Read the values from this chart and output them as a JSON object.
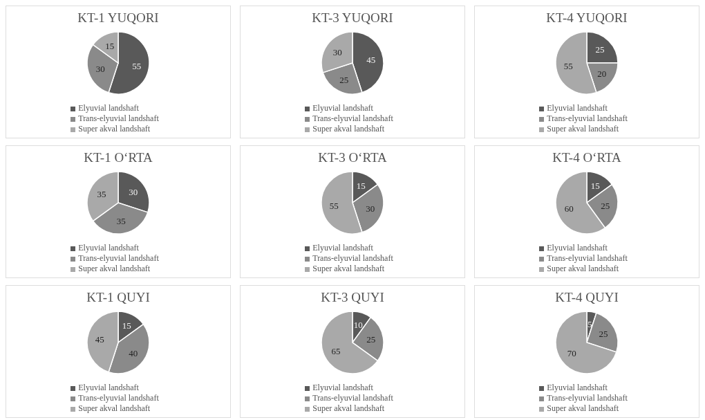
{
  "chart_data": [
    {
      "type": "pie",
      "title": "KT-1 YUQORI",
      "categories": [
        "Elyuvial landshaft",
        "Trans-elyuvial landshaft",
        "Super akval landshaft"
      ],
      "values": [
        55,
        30,
        15
      ],
      "colors": [
        "#595959",
        "#8a8a8a",
        "#a9a9a9"
      ],
      "data_labels": true,
      "legend": "bottom"
    },
    {
      "type": "pie",
      "title": "KT-3 YUQORI",
      "categories": [
        "Elyuvial landshaft",
        "Trans-elyuvial landshaft",
        "Super akval landshaft"
      ],
      "values": [
        45,
        25,
        30
      ],
      "colors": [
        "#595959",
        "#8a8a8a",
        "#a9a9a9"
      ],
      "data_labels": true,
      "legend": "bottom"
    },
    {
      "type": "pie",
      "title": "KT-4 YUQORI",
      "categories": [
        "Elyuvial landshaft",
        "Trans-elyuvial landshaft",
        "Super akval landshaft"
      ],
      "values": [
        25,
        20,
        55
      ],
      "colors": [
        "#595959",
        "#8a8a8a",
        "#a9a9a9"
      ],
      "data_labels": true,
      "legend": "bottom"
    },
    {
      "type": "pie",
      "title": "KT-1 O‘RTA",
      "categories": [
        "Elyuvial landshaft",
        "Trans-elyuvial landshaft",
        "Super akval landshaft"
      ],
      "values": [
        30,
        35,
        35
      ],
      "colors": [
        "#595959",
        "#8a8a8a",
        "#a9a9a9"
      ],
      "data_labels": true,
      "legend": "bottom"
    },
    {
      "type": "pie",
      "title": "KT-3 O‘RTA",
      "categories": [
        "Elyuvial landshaft",
        "Trans-elyuvial landshaft",
        "Super akval landshaft"
      ],
      "values": [
        15,
        30,
        55
      ],
      "colors": [
        "#595959",
        "#8a8a8a",
        "#a9a9a9"
      ],
      "data_labels": true,
      "legend": "bottom"
    },
    {
      "type": "pie",
      "title": "KT-4 O‘RTA",
      "categories": [
        "Elyuvial landshaft",
        "Trans-elyuvial landshaft",
        "Super akval landshaft"
      ],
      "values": [
        15,
        25,
        60
      ],
      "colors": [
        "#595959",
        "#8a8a8a",
        "#a9a9a9"
      ],
      "data_labels": true,
      "legend": "bottom"
    },
    {
      "type": "pie",
      "title": "KT-1 QUYI",
      "categories": [
        "Elyuvial landshaft",
        "Trans-elyuvial landshaft",
        "Super akval landshaft"
      ],
      "values": [
        15,
        40,
        45
      ],
      "colors": [
        "#595959",
        "#8a8a8a",
        "#a9a9a9"
      ],
      "data_labels": true,
      "legend": "bottom"
    },
    {
      "type": "pie",
      "title": "KT-3 QUYI",
      "categories": [
        "Elyuvial landshaft",
        "Trans-elyuvial landshaft",
        "Super akval landshaft"
      ],
      "values": [
        10,
        25,
        65
      ],
      "colors": [
        "#595959",
        "#8a8a8a",
        "#a9a9a9"
      ],
      "data_labels": true,
      "legend": "bottom"
    },
    {
      "type": "pie",
      "title": "KT-4 QUYI",
      "categories": [
        "Elyuvial landshaft",
        "Trans-elyuvial landshaft",
        "Super akval landshaft"
      ],
      "values": [
        5,
        25,
        70
      ],
      "colors": [
        "#595959",
        "#8a8a8a",
        "#a9a9a9"
      ],
      "data_labels": true,
      "legend": "bottom"
    }
  ]
}
